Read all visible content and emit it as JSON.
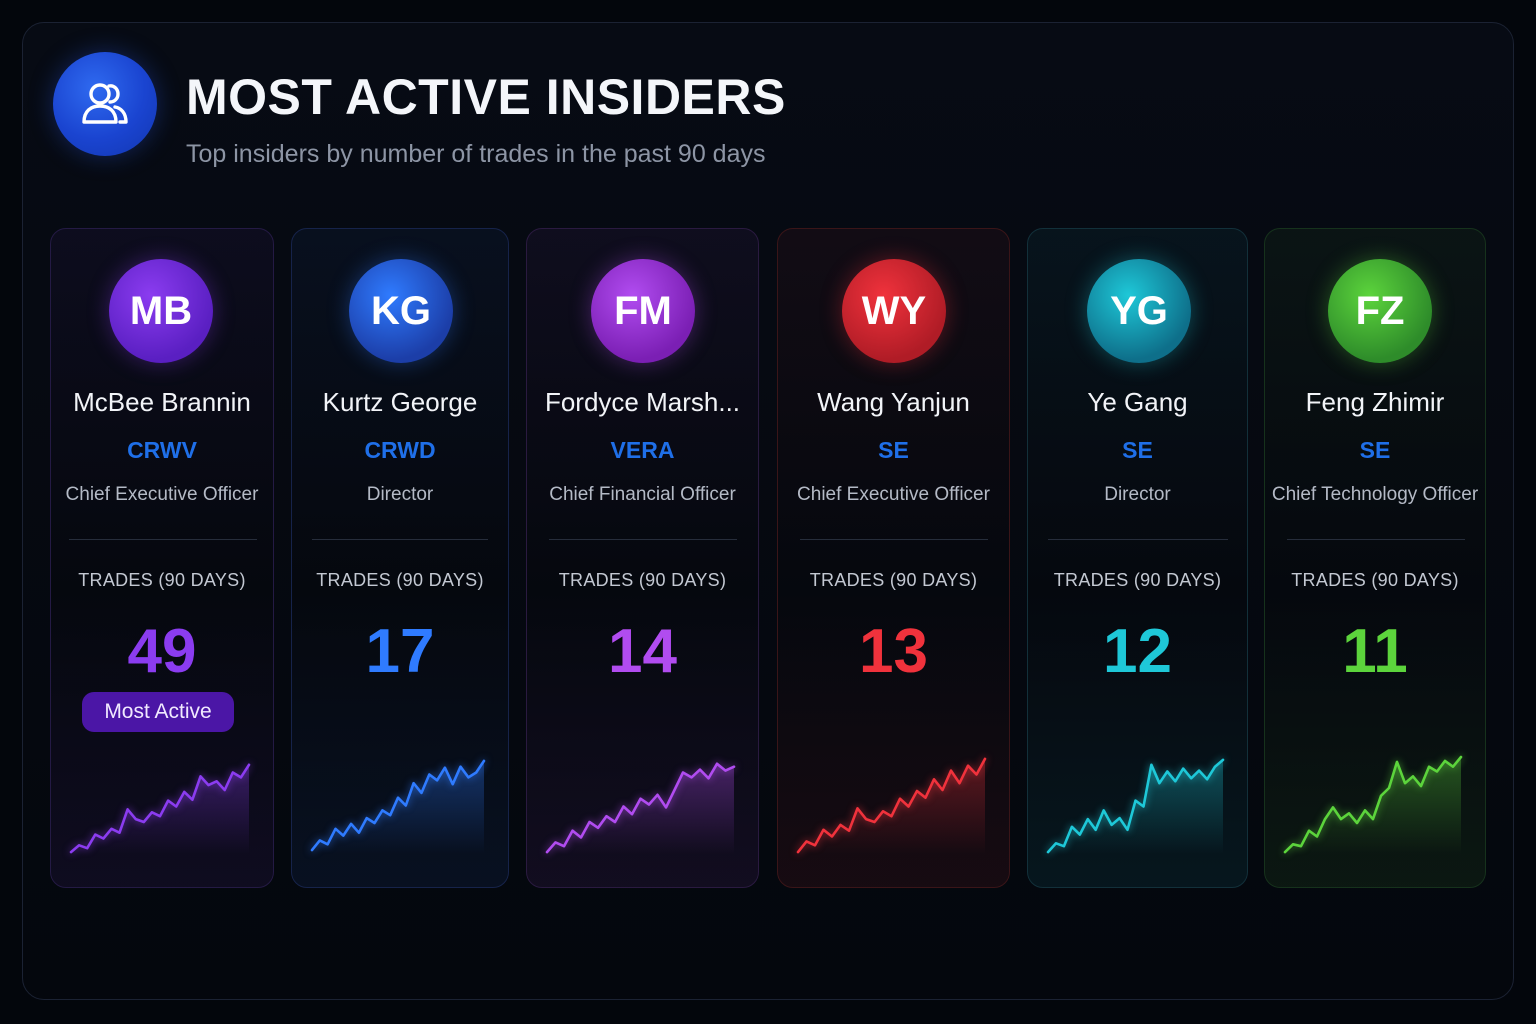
{
  "header": {
    "icon": "users-icon",
    "title": "MOST ACTIVE INSIDERS",
    "subtitle": "Top insiders by number of trades in the past 90 days"
  },
  "cards": [
    {
      "initials": "MB",
      "name": "McBee Brannin",
      "ticker": "CRWV",
      "role": "Chief Executive Officer",
      "trades_label": "TRADES (90 DAYS)",
      "trades": "49",
      "badge": "Most Active",
      "color": "#8b3cf0",
      "avatar_color": "#5a1fc2",
      "border_color": "#241a44",
      "trend": [
        2,
        9,
        6,
        20,
        16,
        26,
        22,
        46,
        36,
        33,
        43,
        39,
        55,
        49,
        64,
        56,
        80,
        71,
        75,
        66,
        84,
        79,
        92
      ]
    },
    {
      "initials": "KG",
      "name": "Kurtz George",
      "ticker": "CRWD",
      "role": "Director",
      "trades_label": "TRADES (90 DAYS)",
      "trades": "17",
      "color": "#2f7bff",
      "avatar_color": "#1c3ea8",
      "border_color": "#16234a",
      "trend": [
        4,
        14,
        10,
        26,
        19,
        31,
        22,
        37,
        32,
        45,
        40,
        58,
        50,
        73,
        63,
        82,
        76,
        89,
        72,
        90,
        79,
        84,
        96
      ]
    },
    {
      "initials": "FM",
      "name": "Fordyce Marsh...",
      "ticker": "VERA",
      "role": "Chief Financial Officer",
      "trades_label": "TRADES (90 DAYS)",
      "trades": "14",
      "color": "#b14cf0",
      "avatar_color": "#7b1fb4",
      "border_color": "#2a1a40",
      "trend": [
        2,
        12,
        8,
        24,
        17,
        33,
        27,
        39,
        33,
        49,
        41,
        57,
        51,
        61,
        48,
        66,
        84,
        79,
        87,
        78,
        93,
        86,
        90
      ]
    },
    {
      "initials": "WY",
      "name": "Wang Yanjun",
      "ticker": "SE",
      "role": "Chief Executive Officer",
      "trades_label": "TRADES (90 DAYS)",
      "trades": "13",
      "color": "#f0323c",
      "avatar_color": "#b01c26",
      "border_color": "#3a1518",
      "trend": [
        2,
        13,
        9,
        25,
        18,
        30,
        24,
        47,
        36,
        33,
        44,
        39,
        57,
        49,
        65,
        58,
        77,
        66,
        86,
        73,
        91,
        82,
        98
      ]
    },
    {
      "initials": "YG",
      "name": "Ye Gang",
      "ticker": "SE",
      "role": "Director",
      "trades_label": "TRADES (90 DAYS)",
      "trades": "12",
      "color": "#1ec8d8",
      "avatar_color": "#0e6f8a",
      "border_color": "#12303a",
      "trend": [
        2,
        11,
        8,
        28,
        20,
        36,
        25,
        45,
        30,
        37,
        25,
        55,
        49,
        92,
        73,
        85,
        75,
        88,
        78,
        86,
        77,
        90,
        97
      ]
    },
    {
      "initials": "FZ",
      "name": "Feng Zhimir",
      "ticker": "SE",
      "role": "Chief Technology Officer",
      "trades_label": "TRADES (90 DAYS)",
      "trades": "11",
      "color": "#5cd43c",
      "avatar_color": "#2e8c2a",
      "border_color": "#16321c",
      "trend": [
        2,
        10,
        8,
        24,
        18,
        36,
        48,
        36,
        42,
        32,
        45,
        36,
        60,
        68,
        95,
        73,
        80,
        70,
        90,
        85,
        96,
        90,
        100
      ]
    }
  ]
}
